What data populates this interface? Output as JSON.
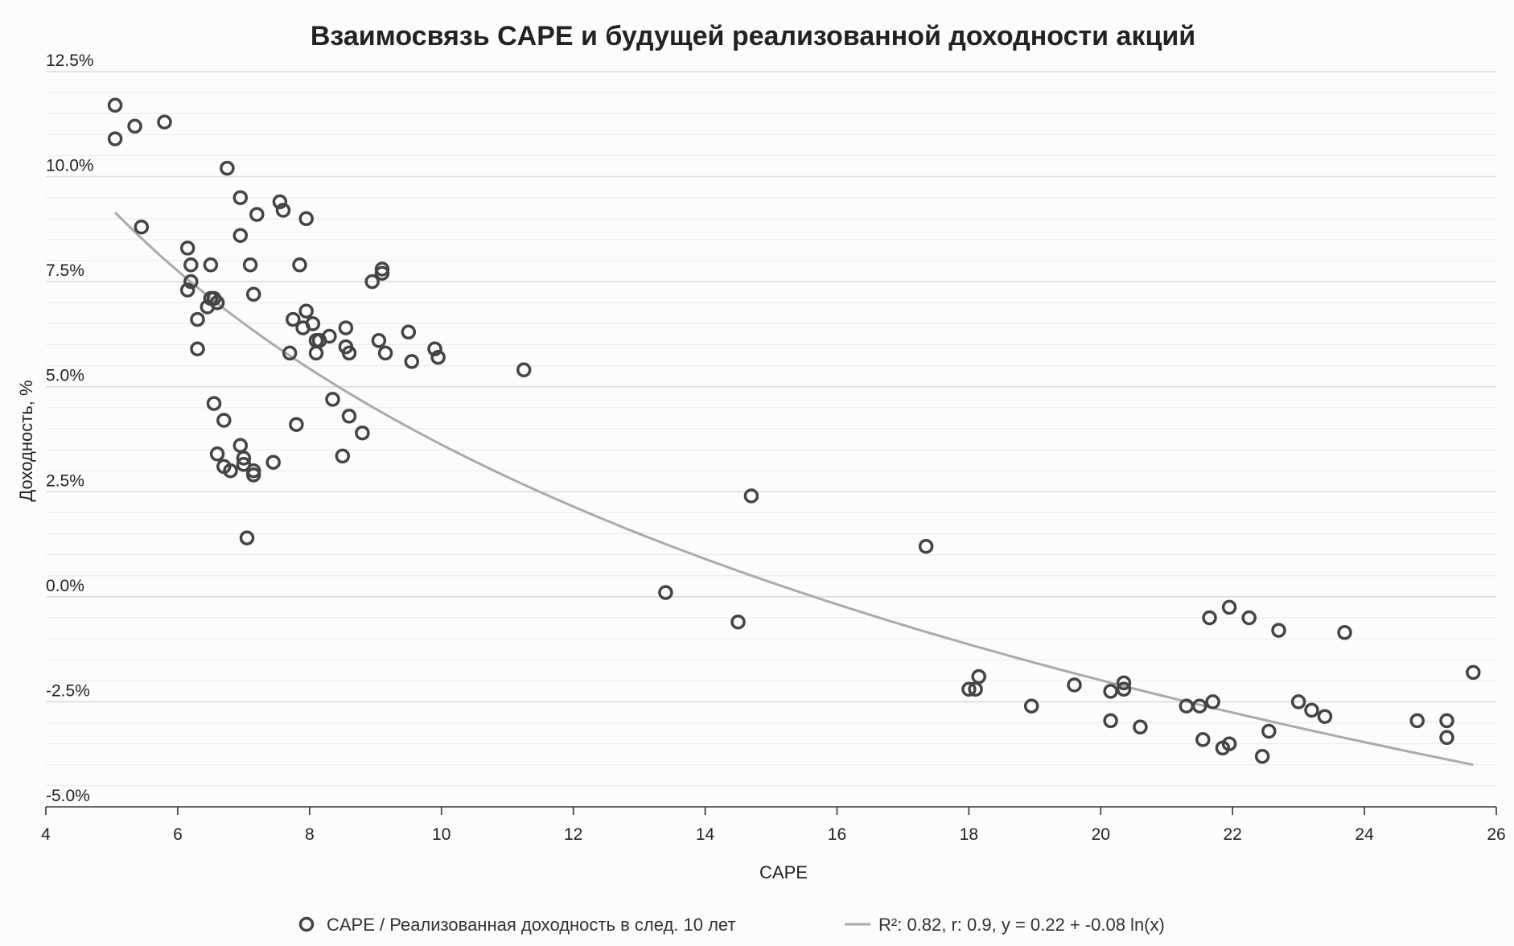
{
  "chart_data": {
    "type": "scatter",
    "title": "Взаимосвязь CAPE и будущей реализованной доходности акций",
    "xlabel": "CAPE",
    "ylabel": "Доходность, %",
    "xlim": [
      4,
      26
    ],
    "ylim": [
      -5.0,
      12.5
    ],
    "x_ticks": [
      "4",
      "6",
      "8",
      "10",
      "12",
      "14",
      "16",
      "18",
      "20",
      "22",
      "24",
      "26"
    ],
    "y_ticks": [
      "12.5%",
      "10.0%",
      "7.5%",
      "5.0%",
      "2.5%",
      "0.0%",
      "-2.5%",
      "-5.0%"
    ],
    "grid": true,
    "legend_position": "bottom",
    "colors": {
      "points": "#444444",
      "trend": "#aaaaaa",
      "grid": "#e6e6e6",
      "axis": "#333333"
    },
    "series": [
      {
        "name": "CAPE / Реализованная доходность в след. 10 лет",
        "marker": "circle-open",
        "points": [
          [
            5.05,
            11.7
          ],
          [
            5.05,
            10.9
          ],
          [
            5.35,
            11.2
          ],
          [
            5.8,
            11.3
          ],
          [
            5.45,
            8.8
          ],
          [
            6.15,
            8.3
          ],
          [
            6.15,
            7.3
          ],
          [
            6.2,
            7.5
          ],
          [
            6.2,
            7.9
          ],
          [
            6.3,
            6.6
          ],
          [
            6.3,
            5.9
          ],
          [
            6.45,
            6.9
          ],
          [
            6.5,
            7.9
          ],
          [
            6.5,
            7.1
          ],
          [
            6.55,
            7.1
          ],
          [
            6.6,
            7.0
          ],
          [
            6.55,
            4.6
          ],
          [
            6.6,
            3.4
          ],
          [
            6.7,
            4.2
          ],
          [
            6.7,
            3.1
          ],
          [
            6.75,
            10.2
          ],
          [
            6.8,
            3.0
          ],
          [
            6.95,
            9.5
          ],
          [
            6.95,
            8.6
          ],
          [
            6.95,
            3.6
          ],
          [
            7.0,
            3.3
          ],
          [
            7.0,
            3.15
          ],
          [
            7.05,
            1.4
          ],
          [
            7.1,
            7.9
          ],
          [
            7.15,
            3.0
          ],
          [
            7.15,
            2.9
          ],
          [
            7.15,
            7.2
          ],
          [
            7.2,
            9.1
          ],
          [
            7.45,
            3.2
          ],
          [
            7.55,
            9.4
          ],
          [
            7.6,
            9.2
          ],
          [
            7.7,
            5.8
          ],
          [
            7.75,
            6.6
          ],
          [
            7.8,
            4.1
          ],
          [
            7.85,
            7.9
          ],
          [
            7.9,
            6.4
          ],
          [
            7.95,
            6.8
          ],
          [
            7.95,
            9.0
          ],
          [
            8.05,
            6.5
          ],
          [
            8.1,
            6.1
          ],
          [
            8.1,
            5.8
          ],
          [
            8.15,
            6.1
          ],
          [
            8.3,
            6.2
          ],
          [
            8.35,
            4.7
          ],
          [
            8.5,
            3.35
          ],
          [
            8.55,
            6.4
          ],
          [
            8.55,
            5.95
          ],
          [
            8.6,
            5.8
          ],
          [
            8.6,
            4.3
          ],
          [
            8.8,
            3.9
          ],
          [
            8.95,
            7.5
          ],
          [
            9.05,
            6.1
          ],
          [
            9.1,
            7.7
          ],
          [
            9.1,
            7.8
          ],
          [
            9.15,
            5.8
          ],
          [
            9.5,
            6.3
          ],
          [
            9.55,
            5.6
          ],
          [
            9.9,
            5.9
          ],
          [
            9.95,
            5.7
          ],
          [
            11.25,
            5.4
          ],
          [
            13.4,
            0.1
          ],
          [
            14.5,
            -0.6
          ],
          [
            14.7,
            2.4
          ],
          [
            17.35,
            1.2
          ],
          [
            18.0,
            -2.2
          ],
          [
            18.1,
            -2.2
          ],
          [
            18.15,
            -1.9
          ],
          [
            18.95,
            -2.6
          ],
          [
            19.6,
            -2.1
          ],
          [
            20.15,
            -2.25
          ],
          [
            20.15,
            -2.95
          ],
          [
            20.35,
            -2.2
          ],
          [
            20.35,
            -2.05
          ],
          [
            20.6,
            -3.1
          ],
          [
            21.3,
            -2.6
          ],
          [
            21.5,
            -2.6
          ],
          [
            21.55,
            -3.4
          ],
          [
            21.65,
            -0.5
          ],
          [
            21.7,
            -2.5
          ],
          [
            21.85,
            -3.6
          ],
          [
            21.95,
            -0.25
          ],
          [
            21.95,
            -3.5
          ],
          [
            22.25,
            -0.5
          ],
          [
            22.45,
            -3.8
          ],
          [
            22.55,
            -3.2
          ],
          [
            22.7,
            -0.8
          ],
          [
            23.0,
            -2.5
          ],
          [
            23.2,
            -2.7
          ],
          [
            23.4,
            -2.85
          ],
          [
            23.7,
            -0.85
          ],
          [
            24.8,
            -2.95
          ],
          [
            25.25,
            -2.95
          ],
          [
            25.25,
            -3.35
          ],
          [
            25.65,
            -1.8
          ]
        ]
      },
      {
        "name": "R²: 0.82, r: 0.9, y = 0.22 + -0.08 ln(x)",
        "type": "line",
        "fit": {
          "kind": "log",
          "intercept": 0.2225,
          "slope": -0.0809,
          "x_range": [
            5.05,
            25.65
          ]
        }
      }
    ]
  }
}
